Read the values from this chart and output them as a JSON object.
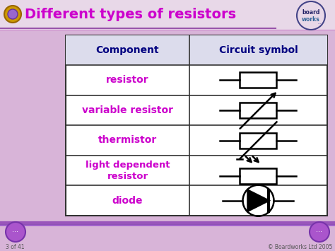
{
  "title": "Different types of resistors",
  "title_color": "#cc00cc",
  "bg_color": "#d8b4d8",
  "table_bg": "#ffffff",
  "header_bg": "#e8e8f4",
  "border_color": "#333333",
  "component_color": "#cc00cc",
  "header_text_color": "#000080",
  "components": [
    "resistor",
    "variable resistor",
    "thermistor",
    "light dependent\nresistor",
    "diode"
  ],
  "col1_label": "Component",
  "col2_label": "Circuit symbol",
  "footer_text": "© Boardworks Ltd 2005",
  "slide_num": "3 of 41",
  "symbol_color": "#000000"
}
